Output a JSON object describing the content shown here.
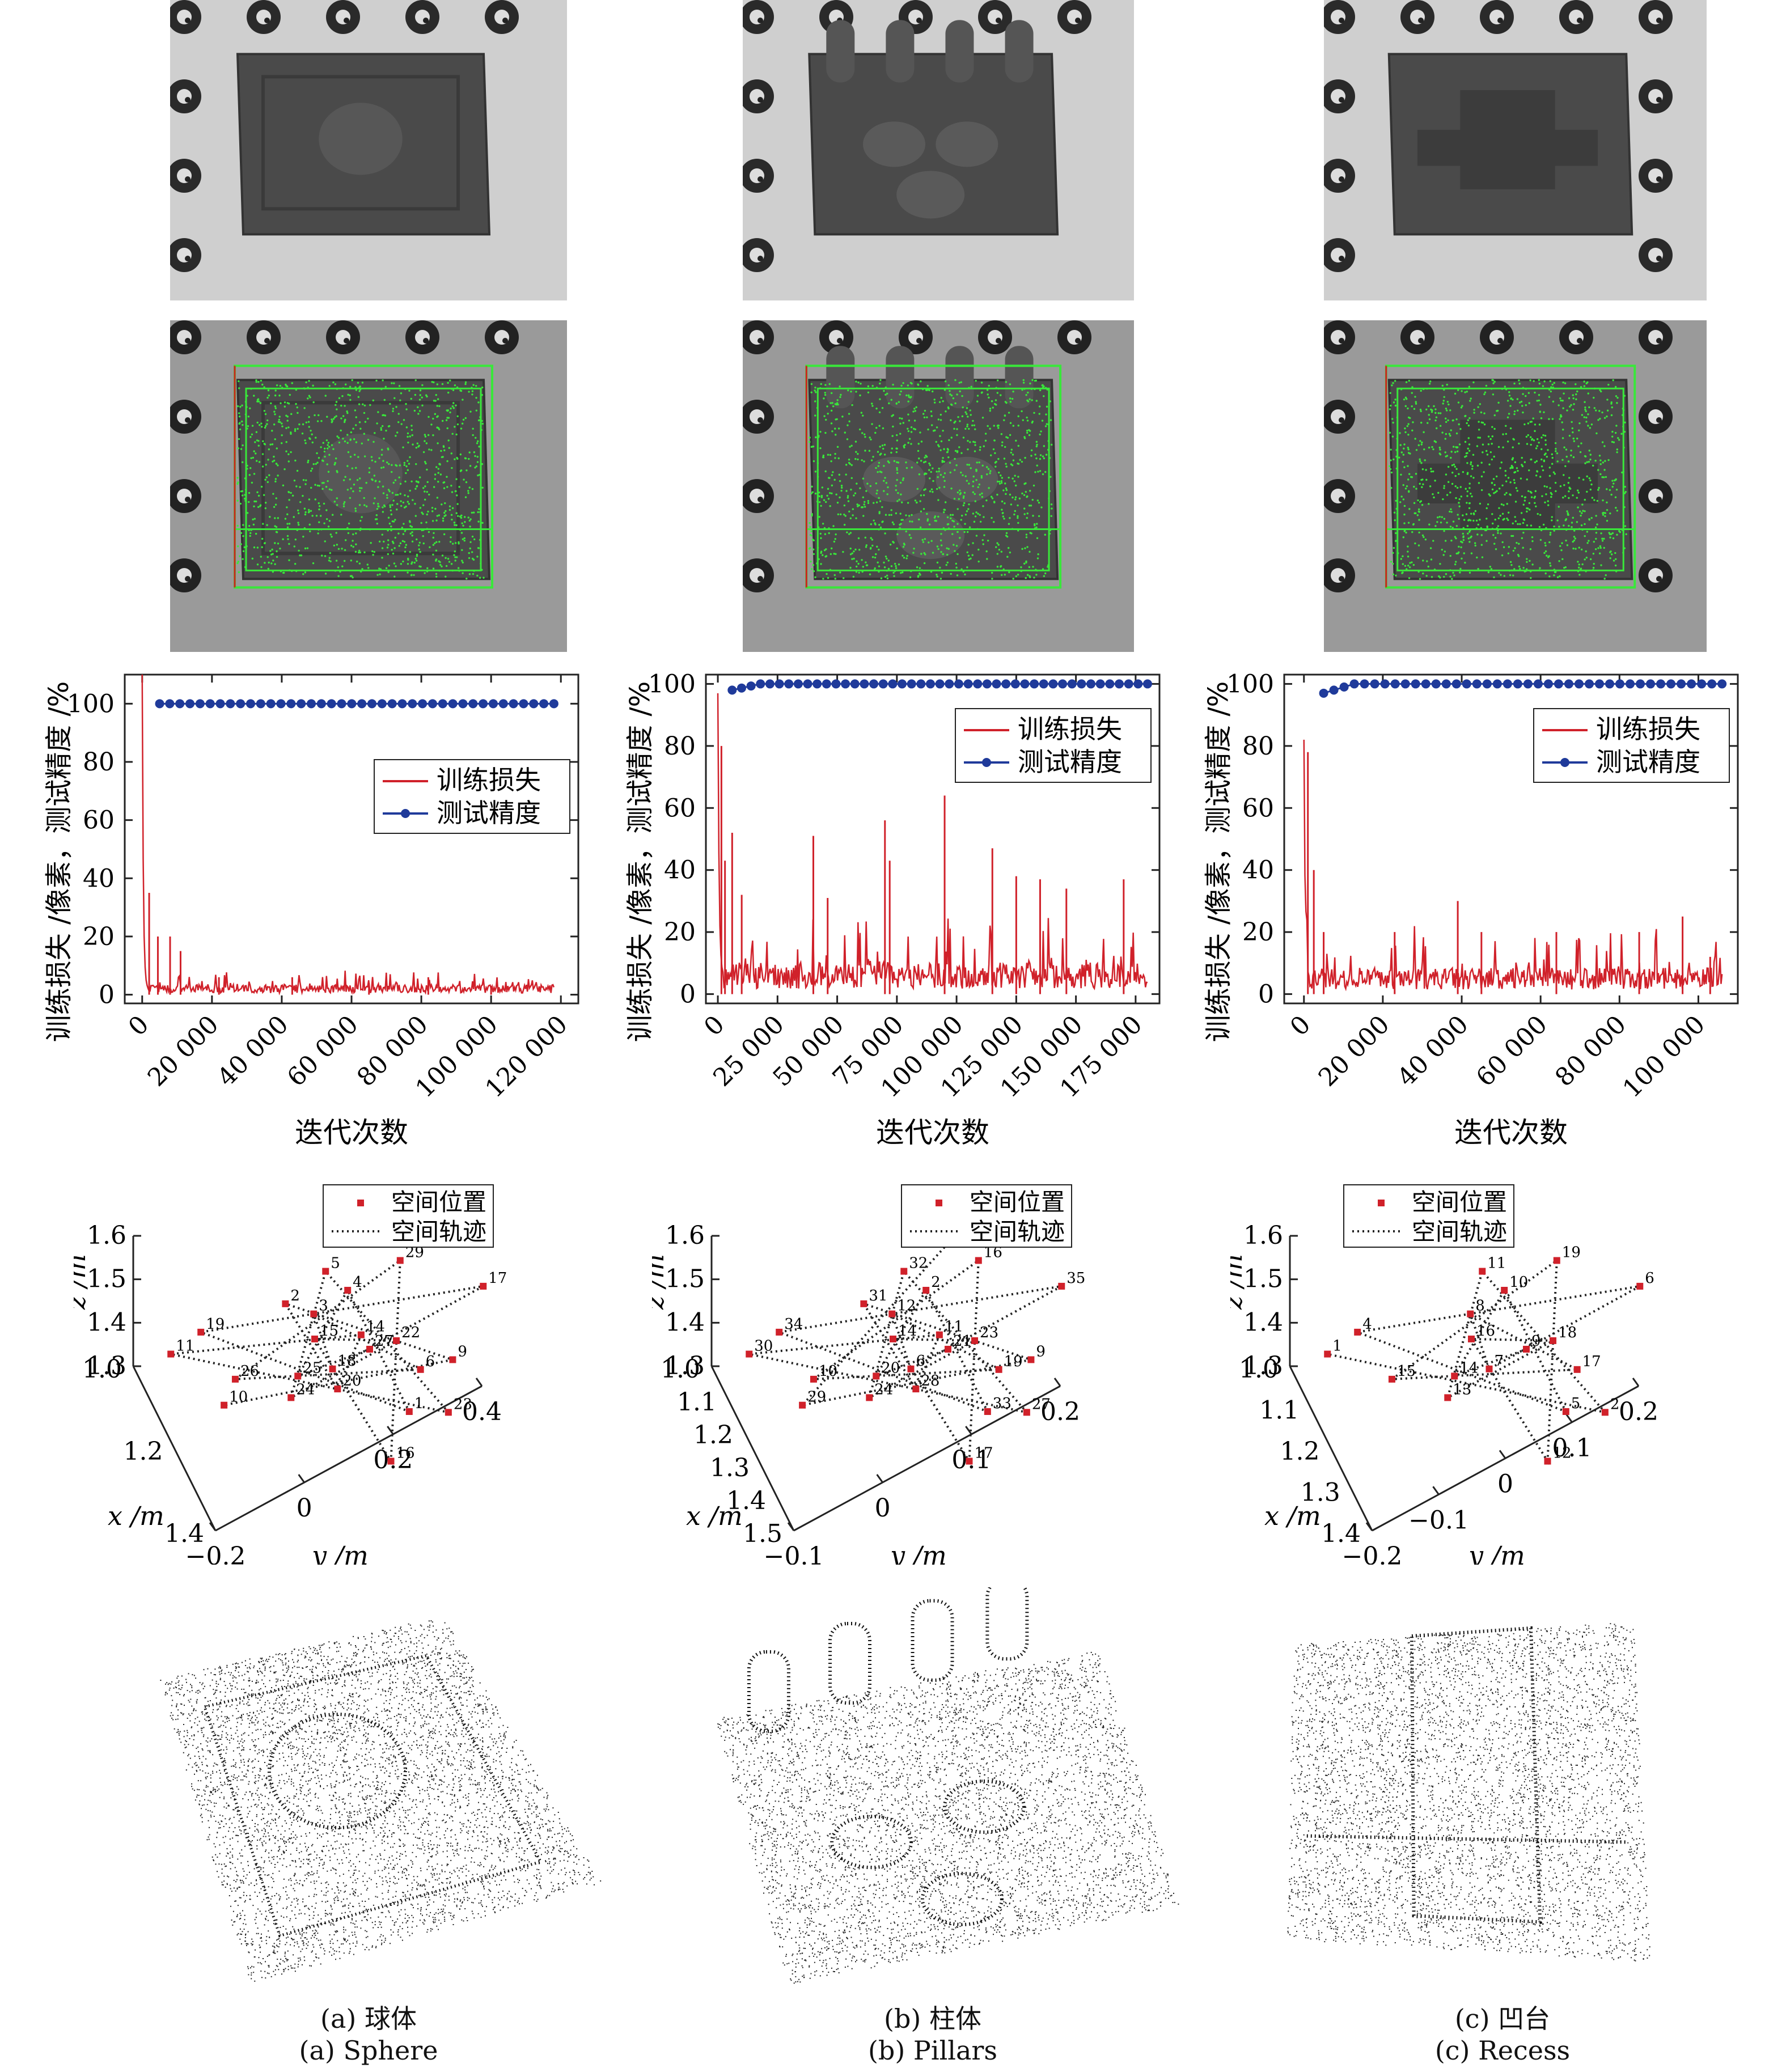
{
  "legend": {
    "loss": "训练损失",
    "accuracy": "测试精度",
    "position": "空间位置",
    "trajectory": "空间轨迹"
  },
  "axes": {
    "iter_ylabel": "训练损失  /像素，测试精度  /%",
    "iter_xlabel": "迭代次数",
    "traj_x": "x /m",
    "traj_y": "y /m",
    "traj_z": "z /m"
  },
  "colors": {
    "loss": "#d0212a",
    "accuracy": "#1f3a9a",
    "point": "#d0212a",
    "box": "#39e83a"
  },
  "panels": [
    {
      "cn": "(a) 球体",
      "en": "(a) Sphere",
      "photo": "sphere-block",
      "cloud": "sphere-pointcloud"
    },
    {
      "cn": "(b) 柱体",
      "en": "(b) Pillars",
      "photo": "pillars-block",
      "cloud": "pillars-pointcloud"
    },
    {
      "cn": "(c) 凹台",
      "en": "(c) Recess",
      "photo": "recess-block",
      "cloud": "recess-pointcloud"
    }
  ],
  "chart_data": [
    {
      "type": "line",
      "panel": "a",
      "xlim": [
        -5000,
        125000
      ],
      "ylim": [
        -3,
        110
      ],
      "xticks": [
        "0",
        "20 000",
        "40 000",
        "60 000",
        "80 000",
        "100 000",
        "120 000"
      ],
      "xtick_values": [
        0,
        20000,
        40000,
        60000,
        80000,
        100000,
        120000
      ],
      "yticks": [
        0,
        20,
        40,
        60,
        80,
        100
      ],
      "series": [
        {
          "name": "训练损失",
          "kind": "loss",
          "x_max": 118000,
          "peak": 110,
          "spikes": [
            [
              2000,
              35
            ],
            [
              4500,
              20
            ],
            [
              8000,
              20
            ],
            [
              11000,
              15
            ],
            [
              22000,
              6
            ],
            [
              43000,
              6
            ],
            [
              65000,
              4
            ],
            [
              82000,
              6
            ],
            [
              100000,
              3
            ]
          ],
          "baseline": 2
        },
        {
          "name": "测试精度",
          "kind": "accuracy",
          "x": [
            5000,
            118000
          ],
          "y": [
            100,
            100
          ],
          "points": 40
        }
      ],
      "legend_loc": "upper-right"
    },
    {
      "type": "line",
      "panel": "b",
      "xlim": [
        -5000,
        185000
      ],
      "ylim": [
        -3,
        103
      ],
      "xticks": [
        "0",
        "25 000",
        "50 000",
        "75 000",
        "100 000",
        "125 000",
        "150 000",
        "175 000"
      ],
      "xtick_values": [
        0,
        25000,
        50000,
        75000,
        100000,
        125000,
        150000,
        175000
      ],
      "yticks": [
        0,
        20,
        40,
        60,
        80,
        100
      ],
      "series": [
        {
          "name": "训练损失",
          "kind": "loss",
          "x_max": 180000,
          "peak": 97,
          "spikes": [
            [
              1500,
              80
            ],
            [
              3000,
              43
            ],
            [
              6000,
              52
            ],
            [
              10000,
              32
            ],
            [
              40000,
              51
            ],
            [
              46000,
              31
            ],
            [
              70000,
              56
            ],
            [
              72000,
              43
            ],
            [
              95000,
              64
            ],
            [
              115000,
              47
            ],
            [
              125000,
              38
            ],
            [
              135000,
              37
            ],
            [
              146000,
              34
            ],
            [
              170000,
              37
            ]
          ],
          "baseline": 6
        },
        {
          "name": "测试精度",
          "kind": "accuracy",
          "x": [
            6000,
            180000
          ],
          "y": [
            98,
            100
          ],
          "points": 45
        }
      ],
      "legend_loc": "upper-right"
    },
    {
      "type": "line",
      "panel": "c",
      "xlim": [
        -5000,
        110000
      ],
      "ylim": [
        -3,
        103
      ],
      "xticks": [
        "0",
        "20 000",
        "40 000",
        "60 000",
        "80 000",
        "100 000"
      ],
      "xtick_values": [
        0,
        20000,
        40000,
        60000,
        80000,
        100000
      ],
      "yticks": [
        0,
        20,
        40,
        60,
        80,
        100
      ],
      "series": [
        {
          "name": "训练损失",
          "kind": "loss",
          "x_max": 106000,
          "peak": 82,
          "spikes": [
            [
              1000,
              78
            ],
            [
              2500,
              40
            ],
            [
              5000,
              20
            ],
            [
              23000,
              20
            ],
            [
              39000,
              30
            ],
            [
              45000,
              20
            ],
            [
              64000,
              20
            ],
            [
              85000,
              20
            ],
            [
              96000,
              25
            ],
            [
              103000,
              12
            ]
          ],
          "baseline": 5
        },
        {
          "name": "测试精度",
          "kind": "accuracy",
          "x": [
            5000,
            106000
          ],
          "y": [
            97,
            100
          ],
          "points": 40
        }
      ],
      "legend_loc": "upper-right"
    },
    {
      "type": "scatter",
      "panel": "a",
      "kind": "trajectory3d",
      "xlim": [
        1.0,
        1.4
      ],
      "ylim": [
        -0.2,
        0.4
      ],
      "zlim": [
        1.3,
        1.6
      ],
      "xticks": [
        "1.0",
        "1.2",
        "1.4"
      ],
      "yticks": [
        "−0.2",
        "0",
        "0.2",
        "0.4"
      ],
      "zticks": [
        "1.3",
        "1.4",
        "1.5",
        "1.6"
      ],
      "labels": [
        "27",
        "25",
        "4",
        "1",
        "19",
        "17",
        "18",
        "3",
        "6",
        "26",
        "29",
        "16",
        "15",
        "22",
        "24",
        "5",
        "23",
        "11",
        "14",
        "20",
        "2",
        "9",
        "10"
      ]
    },
    {
      "type": "scatter",
      "panel": "b",
      "kind": "trajectory3d",
      "xlim": [
        1.0,
        1.5
      ],
      "ylim": [
        -0.1,
        0.2
      ],
      "zlim": [
        1.3,
        1.6
      ],
      "xticks": [
        "1.0",
        "1.1",
        "1.2",
        "1.3",
        "1.4",
        "1.5"
      ],
      "yticks": [
        "−0.1",
        "0",
        "0.1",
        "0.2"
      ],
      "zticks": [
        "1.3",
        "1.4",
        "1.5",
        "1.6"
      ],
      "labels": [
        "21",
        "20",
        "2",
        "33",
        "34",
        "35",
        "6",
        "12",
        "19",
        "10",
        "16",
        "17",
        "14",
        "23",
        "24",
        "32",
        "27",
        "30",
        "11",
        "28",
        "31",
        "9",
        "29",
        "5"
      ]
    },
    {
      "type": "scatter",
      "panel": "c",
      "kind": "trajectory3d",
      "xlim": [
        1.0,
        1.4
      ],
      "ylim": [
        -0.2,
        0.2
      ],
      "zlim": [
        1.3,
        1.6
      ],
      "xticks": [
        "1.0",
        "1.1",
        "1.2",
        "1.3",
        "1.4"
      ],
      "yticks": [
        "−0.2",
        "−0.1",
        "0",
        "0.1",
        "0.2"
      ],
      "zticks": [
        "1.3",
        "1.4",
        "1.5",
        "1.6"
      ],
      "labels": [
        "9",
        "14",
        "10",
        "5",
        "4",
        "6",
        "7",
        "8",
        "17",
        "15",
        "19",
        "12",
        "16",
        "18",
        "13",
        "11",
        "2",
        "1"
      ]
    }
  ]
}
